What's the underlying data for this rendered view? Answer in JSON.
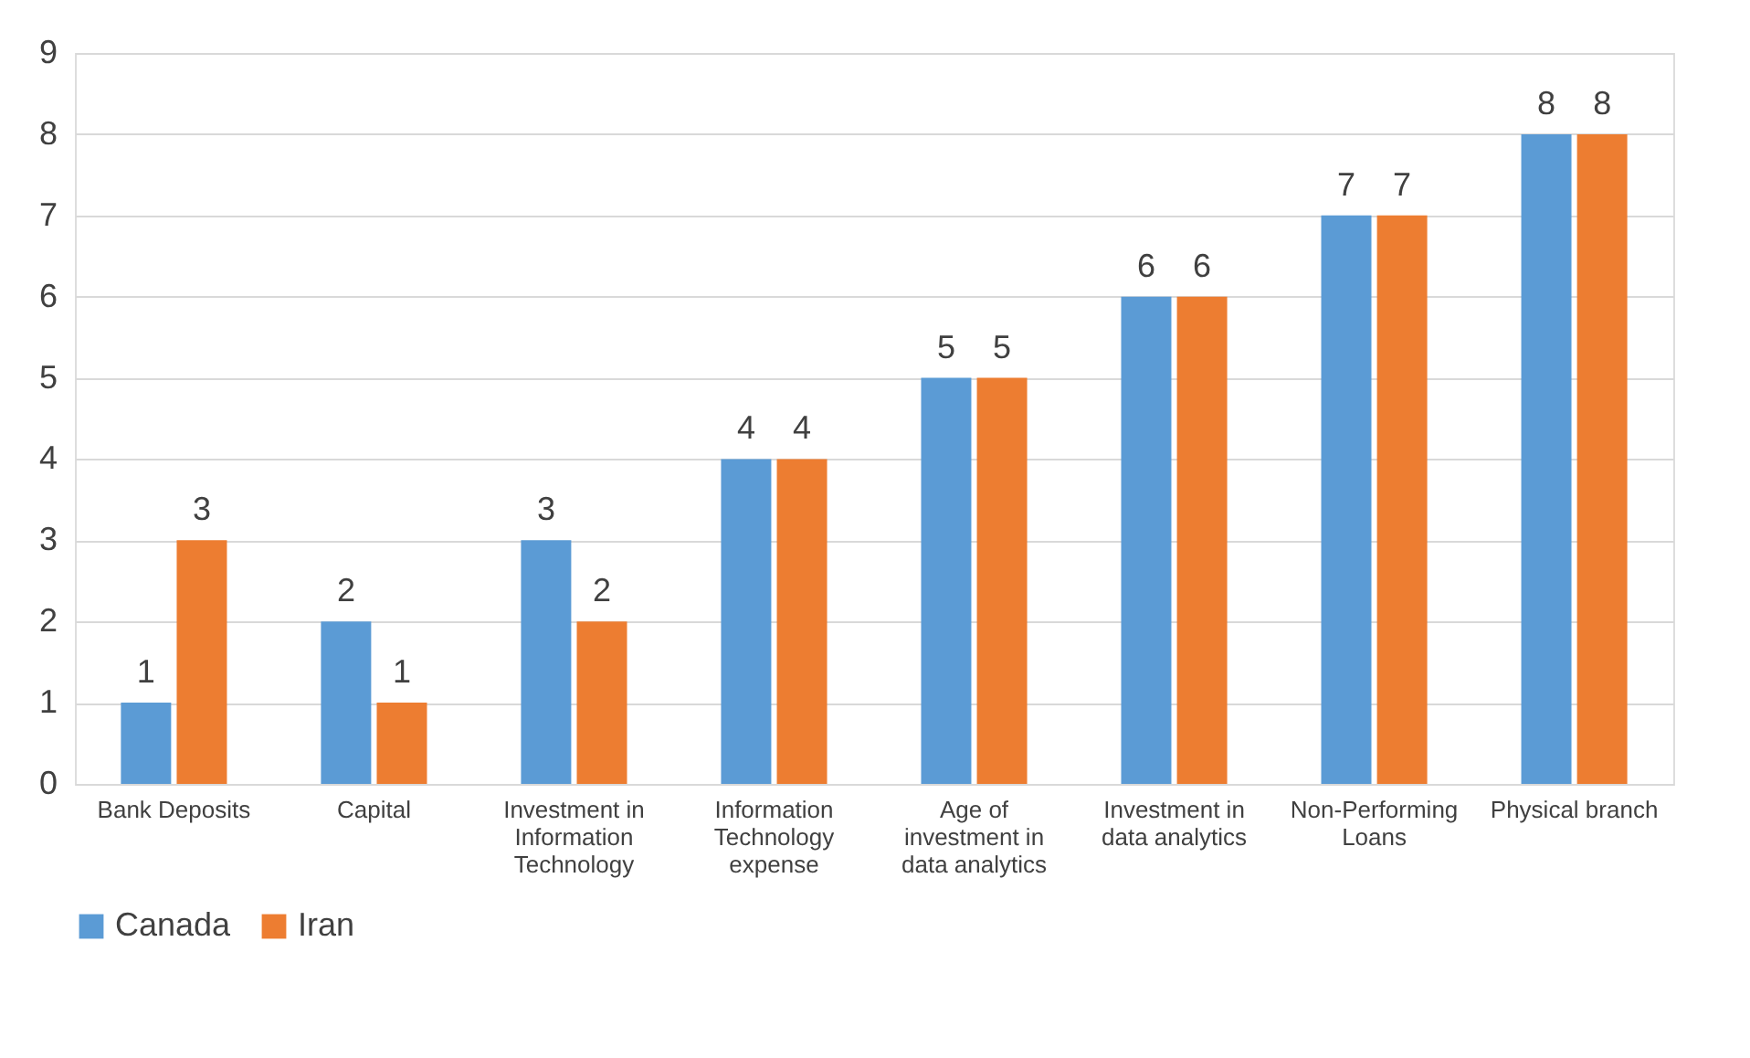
{
  "chart_data": {
    "type": "bar",
    "categories": [
      "Bank Deposits",
      "Capital",
      "Investment in Information Technology",
      "Information Technology expense",
      "Age of investment in data analytics",
      "Investment in data analytics",
      "Non-Performing Loans",
      "Physical branch"
    ],
    "series": [
      {
        "name": "Canada",
        "color": "#5b9bd5",
        "values": [
          1,
          2,
          3,
          4,
          5,
          6,
          7,
          8
        ]
      },
      {
        "name": "Iran",
        "color": "#ed7d31",
        "values": [
          3,
          1,
          2,
          4,
          5,
          6,
          7,
          8
        ]
      }
    ],
    "ylim": [
      0,
      9
    ],
    "yticks": [
      0,
      1,
      2,
      3,
      4,
      5,
      6,
      7,
      8,
      9
    ],
    "grid": "y",
    "legend": "bottom",
    "data_labels": true
  }
}
